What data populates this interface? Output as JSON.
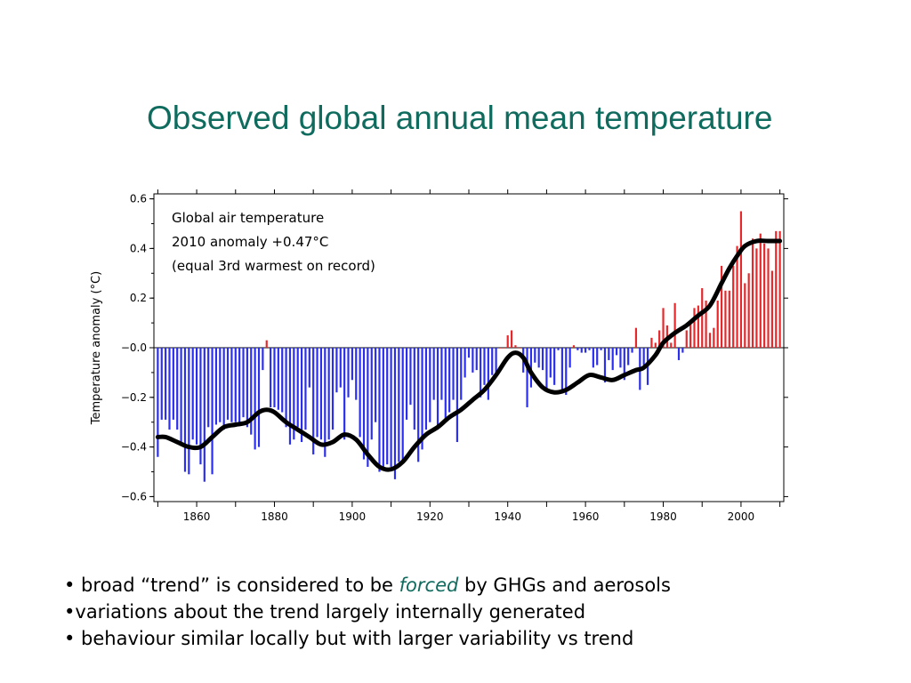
{
  "slide": {
    "title": "Observed global annual mean temperature"
  },
  "bullets": [
    {
      "prefix": "• broad “trend” is considered to be ",
      "emphasis": "forced",
      "suffix": " by GHGs and aerosols"
    },
    {
      "prefix": "•variations about the trend largely internally generated",
      "emphasis": "",
      "suffix": ""
    },
    {
      "prefix": "• behaviour similar locally but with larger variability vs trend",
      "emphasis": "",
      "suffix": ""
    }
  ],
  "chart_data": {
    "type": "bar",
    "annotation": [
      "Global air temperature",
      "2010 anomaly +0.47°C",
      "(equal 3rd warmest on record)"
    ],
    "ylabel": "Temperature anomaly (°C)",
    "xlabel": "",
    "xlim": [
      1849,
      2011
    ],
    "ylim": [
      -0.62,
      0.62
    ],
    "yticks": [
      -0.6,
      -0.4,
      -0.2,
      0.0,
      0.2,
      0.4,
      0.6
    ],
    "ytick_labels": [
      "−0.6",
      "−0.4",
      "−0.2",
      "−0.0",
      "0.2",
      "0.4",
      "0.6"
    ],
    "xticks": [
      1860,
      1880,
      1900,
      1920,
      1940,
      1960,
      1980,
      2000
    ],
    "xtick_labels": [
      "1860",
      "1880",
      "1900",
      "1920",
      "1940",
      "1960",
      "1980",
      "2000"
    ],
    "grid": false,
    "colors": {
      "positive": "#e8272a",
      "negative": "#2a2ef0",
      "smooth": "#000000",
      "axis": "#000000"
    },
    "years_start": 1850,
    "annual_anomaly": [
      -0.44,
      -0.29,
      -0.29,
      -0.33,
      -0.29,
      -0.33,
      -0.39,
      -0.5,
      -0.51,
      -0.37,
      -0.39,
      -0.47,
      -0.54,
      -0.32,
      -0.51,
      -0.31,
      -0.3,
      -0.33,
      -0.29,
      -0.3,
      -0.3,
      -0.3,
      -0.28,
      -0.32,
      -0.35,
      -0.41,
      -0.4,
      -0.09,
      0.03,
      -0.24,
      -0.24,
      -0.25,
      -0.26,
      -0.32,
      -0.39,
      -0.37,
      -0.32,
      -0.38,
      -0.33,
      -0.16,
      -0.43,
      -0.36,
      -0.37,
      -0.44,
      -0.37,
      -0.33,
      -0.18,
      -0.16,
      -0.37,
      -0.2,
      -0.13,
      -0.21,
      -0.36,
      -0.45,
      -0.48,
      -0.37,
      -0.3,
      -0.5,
      -0.48,
      -0.47,
      -0.48,
      -0.53,
      -0.46,
      -0.46,
      -0.29,
      -0.23,
      -0.33,
      -0.46,
      -0.41,
      -0.33,
      -0.3,
      -0.21,
      -0.33,
      -0.21,
      -0.3,
      -0.26,
      -0.21,
      -0.38,
      -0.21,
      -0.12,
      -0.04,
      -0.1,
      -0.09,
      -0.2,
      -0.15,
      -0.21,
      -0.11,
      -0.11,
      0.0,
      -0.0,
      0.05,
      0.07,
      0.01,
      -0.0,
      -0.1,
      -0.24,
      -0.16,
      -0.06,
      -0.08,
      -0.09,
      -0.17,
      -0.12,
      -0.15,
      -0.01,
      -0.18,
      -0.19,
      -0.08,
      0.01,
      -0.01,
      -0.02,
      -0.02,
      -0.01,
      -0.08,
      -0.07,
      -0.01,
      -0.14,
      -0.05,
      -0.09,
      -0.03,
      -0.08,
      -0.13,
      -0.07,
      -0.02,
      0.08,
      -0.17,
      -0.07,
      -0.15,
      0.04,
      0.02,
      0.07,
      0.16,
      0.09,
      0.02,
      0.18,
      -0.05,
      -0.02,
      0.07,
      0.1,
      0.16,
      0.17,
      0.24,
      0.19,
      0.06,
      0.08,
      0.19,
      0.33,
      0.23,
      0.23,
      0.33,
      0.41,
      0.55,
      0.26,
      0.3,
      0.44,
      0.4,
      0.46,
      0.42,
      0.4,
      0.31,
      0.47,
      0.47
    ],
    "smoothed_trend": {
      "x": [
        1850,
        1852,
        1855,
        1858,
        1861,
        1864,
        1867,
        1870,
        1873,
        1876,
        1878,
        1880,
        1883,
        1886,
        1889,
        1892,
        1895,
        1898,
        1901,
        1904,
        1907,
        1910,
        1913,
        1916,
        1919,
        1922,
        1925,
        1928,
        1931,
        1934,
        1937,
        1940,
        1942,
        1944,
        1946,
        1949,
        1952,
        1955,
        1958,
        1961,
        1964,
        1967,
        1970,
        1973,
        1975,
        1978,
        1980,
        1983,
        1986,
        1989,
        1992,
        1995,
        1997,
        1999,
        2001,
        2004,
        2007,
        2010
      ],
      "y": [
        -0.36,
        -0.36,
        -0.38,
        -0.4,
        -0.4,
        -0.36,
        -0.32,
        -0.31,
        -0.3,
        -0.26,
        -0.25,
        -0.26,
        -0.3,
        -0.33,
        -0.36,
        -0.39,
        -0.38,
        -0.35,
        -0.37,
        -0.43,
        -0.48,
        -0.49,
        -0.46,
        -0.4,
        -0.35,
        -0.32,
        -0.28,
        -0.25,
        -0.21,
        -0.17,
        -0.11,
        -0.04,
        -0.02,
        -0.04,
        -0.1,
        -0.16,
        -0.18,
        -0.17,
        -0.14,
        -0.11,
        -0.12,
        -0.13,
        -0.11,
        -0.09,
        -0.08,
        -0.03,
        0.02,
        0.06,
        0.09,
        0.13,
        0.17,
        0.26,
        0.32,
        0.37,
        0.41,
        0.43,
        0.43,
        0.43
      ]
    }
  }
}
